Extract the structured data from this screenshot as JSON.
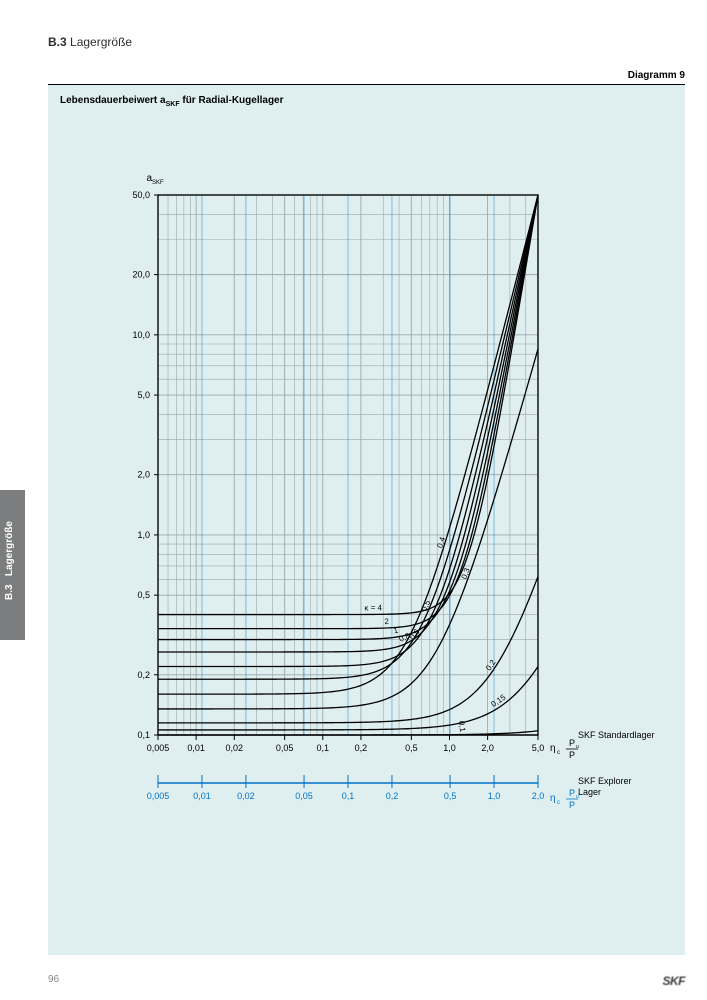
{
  "header": {
    "section": "B.3",
    "title": "Lagergröße"
  },
  "diagram_label": "Diagramm 9",
  "chart": {
    "title_prefix": "Lebensdauerbeiwert a",
    "title_sub": "SKF",
    "title_suffix": " für Radial-Kugellager",
    "type": "log-log-line",
    "ylabel": "a",
    "ylabel_sub": "SKF",
    "y_ticks": [
      "0,1",
      "0,2",
      "0,5",
      "1,0",
      "2,0",
      "5,0",
      "10,0",
      "20,0",
      "50,0"
    ],
    "y_values": [
      0.1,
      0.2,
      0.5,
      1.0,
      2.0,
      5.0,
      10.0,
      20.0,
      50.0
    ],
    "ylim": [
      0.1,
      50.0
    ],
    "x_ticks": [
      "0,005",
      "0,01",
      "0,02",
      "0,05",
      "0,1",
      "0,2",
      "0,5",
      "1,0",
      "2,0",
      "5,0"
    ],
    "x_values_black": [
      0.005,
      0.01,
      0.02,
      0.05,
      0.1,
      0.2,
      0.5,
      1.0,
      2.0,
      5.0
    ],
    "x_values_blue": [
      0.005,
      0.01,
      0.02,
      0.05,
      0.1,
      0.2,
      0.5,
      1.0,
      2.0
    ],
    "xlim_black": [
      0.005,
      5.0
    ],
    "xlim_blue": [
      0.005,
      2.0
    ],
    "xaxis_symbol_eta": "η",
    "xaxis_symbol_sub": "c",
    "xaxis_fraction_top": "P",
    "xaxis_fraction_top_sub": "u",
    "xaxis_fraction_bot": "P",
    "legend_black": "SKF Standardlager",
    "legend_blue": "SKF Explorer\nLager",
    "grid_color": "#9aa7ad",
    "blue": "#0073c8",
    "black": "#000000",
    "background": "#dfeff0",
    "curves": [
      {
        "label": "0,1",
        "a0": 0.1,
        "cap": 0.105,
        "xLabel": 1.2
      },
      {
        "label": "0,15",
        "a0": 0.106,
        "cap": 0.22,
        "xLabel": 2.5
      },
      {
        "label": "0,2",
        "a0": 0.115,
        "cap": 0.62,
        "xLabel": 2.2
      },
      {
        "label": "0,3",
        "a0": 0.135,
        "cap": 8.5,
        "xLabel": 1.4
      },
      {
        "label": "0,4",
        "a0": 0.16,
        "cap": 50,
        "xLabel": 0.9
      },
      {
        "label": "0,5",
        "a0": 0.19,
        "cap": 50,
        "xLabel": 0.68
      },
      {
        "label": "0,6",
        "a0": 0.22,
        "cap": 50,
        "xLabel": 0.55
      },
      {
        "label": "0,8",
        "a0": 0.26,
        "cap": 50,
        "xLabel": 0.45
      },
      {
        "label": "1",
        "a0": 0.3,
        "cap": 50,
        "xLabel": 0.38
      },
      {
        "label": "2",
        "a0": 0.34,
        "cap": 50,
        "xLabel": 0.32
      },
      {
        "label": "κ = 4",
        "a0": 0.4,
        "cap": 50,
        "xLabel": 0.25
      }
    ],
    "curve_line_width": 1.3,
    "grid_line_width": 0.6,
    "axis_line_width": 1.2,
    "label_fontsize": 10,
    "tick_fontsize": 9
  },
  "side_tab": {
    "section": "B.3",
    "title": "Lagergröße"
  },
  "footer": {
    "page": "96",
    "brand": "SKF"
  }
}
